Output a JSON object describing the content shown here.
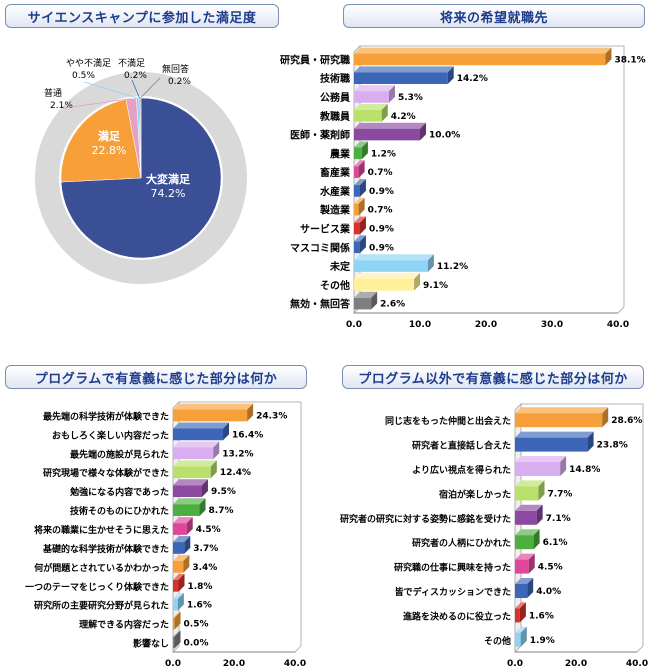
{
  "colors": {
    "navy": "#3a4f96",
    "orange": "#f7a03a",
    "pink": "#e6a0c4",
    "light_grey": "#d9d9d9",
    "blue": "#3d66b8",
    "lavender": "#d9aef0",
    "lime": "#b8e06a",
    "purple": "#8b4aa0",
    "green": "#4caf3f",
    "magenta": "#e0479a",
    "red": "#d8312b",
    "sky": "#8fd3f5",
    "yellow": "#fff09a",
    "grey": "#7f7f7f",
    "title": "#1f3c8c"
  },
  "chart_data": [
    {
      "type": "pie",
      "title": "サイエンスキャンプに参加した満足度",
      "slices": [
        {
          "label": "大変満足",
          "value": 74.2,
          "color": "#3a4f96"
        },
        {
          "label": "満足",
          "value": 22.8,
          "color": "#f7a03a"
        },
        {
          "label": "普通",
          "value": 2.1,
          "color": "#e6a0c4"
        },
        {
          "label": "やや不満足",
          "value": 0.5,
          "color": "#8fd3f5"
        },
        {
          "label": "不満足",
          "value": 0.2,
          "color": "#3d66b8"
        },
        {
          "label": "無回答",
          "value": 0.2,
          "color": "#7f7f7f"
        }
      ]
    },
    {
      "type": "bar",
      "orientation": "horizontal",
      "title": "将来の希望就職先",
      "xlim": [
        0,
        40
      ],
      "ticks": [
        "0.0",
        "10.0",
        "20.0",
        "30.0",
        "40.0"
      ],
      "categories": [
        "研究員・研究職",
        "技術職",
        "公務員",
        "教職員",
        "医師・薬剤師",
        "農業",
        "畜産業",
        "水産業",
        "製造業",
        "サービス業",
        "マスコミ関係",
        "未定",
        "その他",
        "無効・無回答"
      ],
      "values": [
        38.1,
        14.2,
        5.3,
        4.2,
        10.0,
        1.2,
        0.7,
        0.9,
        0.7,
        0.9,
        0.9,
        11.2,
        9.1,
        2.6
      ],
      "labels": [
        "38.1%",
        "14.2%",
        "5.3%",
        "4.2%",
        "10.0%",
        "1.2%",
        "0.7%",
        "0.9%",
        "0.7%",
        "0.9%",
        "0.9%",
        "11.2%",
        "9.1%",
        "2.6%"
      ],
      "colors": [
        "#f7a03a",
        "#3d66b8",
        "#d9aef0",
        "#b8e06a",
        "#8b4aa0",
        "#4caf3f",
        "#e0479a",
        "#3d66b8",
        "#f7a03a",
        "#d8312b",
        "#3d66b8",
        "#8fd3f5",
        "#fff09a",
        "#7f7f7f"
      ]
    },
    {
      "type": "bar",
      "orientation": "horizontal",
      "title": "プログラムで有意義に感じた部分は何か",
      "xlim": [
        0,
        40
      ],
      "ticks": [
        "0.0",
        "20.0",
        "40.0"
      ],
      "categories": [
        "最先端の科学技術が体験できた",
        "おもしろく楽しい内容だった",
        "最先端の施設が見られた",
        "研究現場で様々な体験ができた",
        "勉強になる内容であった",
        "技術そのものにひかれた",
        "将来の職業に生かせそうに思えた",
        "基礎的な科学技術が体験できた",
        "何が問題とされているかわかった",
        "一つのテーマをじっくり体験できた",
        "研究所の主要研究分野が見られた",
        "理解できる内容だった",
        "影響なし"
      ],
      "values": [
        24.3,
        16.4,
        13.2,
        12.4,
        9.5,
        8.7,
        4.5,
        3.7,
        3.4,
        1.8,
        1.6,
        0.5,
        0.0
      ],
      "labels": [
        "24.3%",
        "16.4%",
        "13.2%",
        "12.4%",
        "9.5%",
        "8.7%",
        "4.5%",
        "3.7%",
        "3.4%",
        "1.8%",
        "1.6%",
        "0.5%",
        "0.0%"
      ],
      "colors": [
        "#f7a03a",
        "#3d66b8",
        "#d9aef0",
        "#b8e06a",
        "#8b4aa0",
        "#4caf3f",
        "#e0479a",
        "#3d66b8",
        "#f7a03a",
        "#d8312b",
        "#8fd3f5",
        "#f7a03a",
        "#7f7f7f"
      ]
    },
    {
      "type": "bar",
      "orientation": "horizontal",
      "title": "プログラム以外で有意義に感じた部分は何か",
      "xlim": [
        0,
        40
      ],
      "ticks": [
        "0.0",
        "20.0",
        "40.0"
      ],
      "categories": [
        "同じ志をもった仲間と出会えた",
        "研究者と直接話し合えた",
        "より広い視点を得られた",
        "宿泊が楽しかった",
        "研究者の研究に対する姿勢に感銘を受けた",
        "研究者の人柄にひかれた",
        "研究職の仕事に興味を持った",
        "皆でディスカッションできた",
        "進路を決めるのに役立った",
        "その他"
      ],
      "values": [
        28.6,
        23.8,
        14.8,
        7.7,
        7.1,
        6.1,
        4.5,
        4.0,
        1.6,
        1.9
      ],
      "labels": [
        "28.6%",
        "23.8%",
        "14.8%",
        "7.7%",
        "7.1%",
        "6.1%",
        "4.5%",
        "4.0%",
        "1.6%",
        "1.9%"
      ],
      "colors": [
        "#f7a03a",
        "#3d66b8",
        "#d9aef0",
        "#b8e06a",
        "#8b4aa0",
        "#4caf3f",
        "#e0479a",
        "#3d66b8",
        "#d8312b",
        "#8fd3f5"
      ]
    }
  ]
}
